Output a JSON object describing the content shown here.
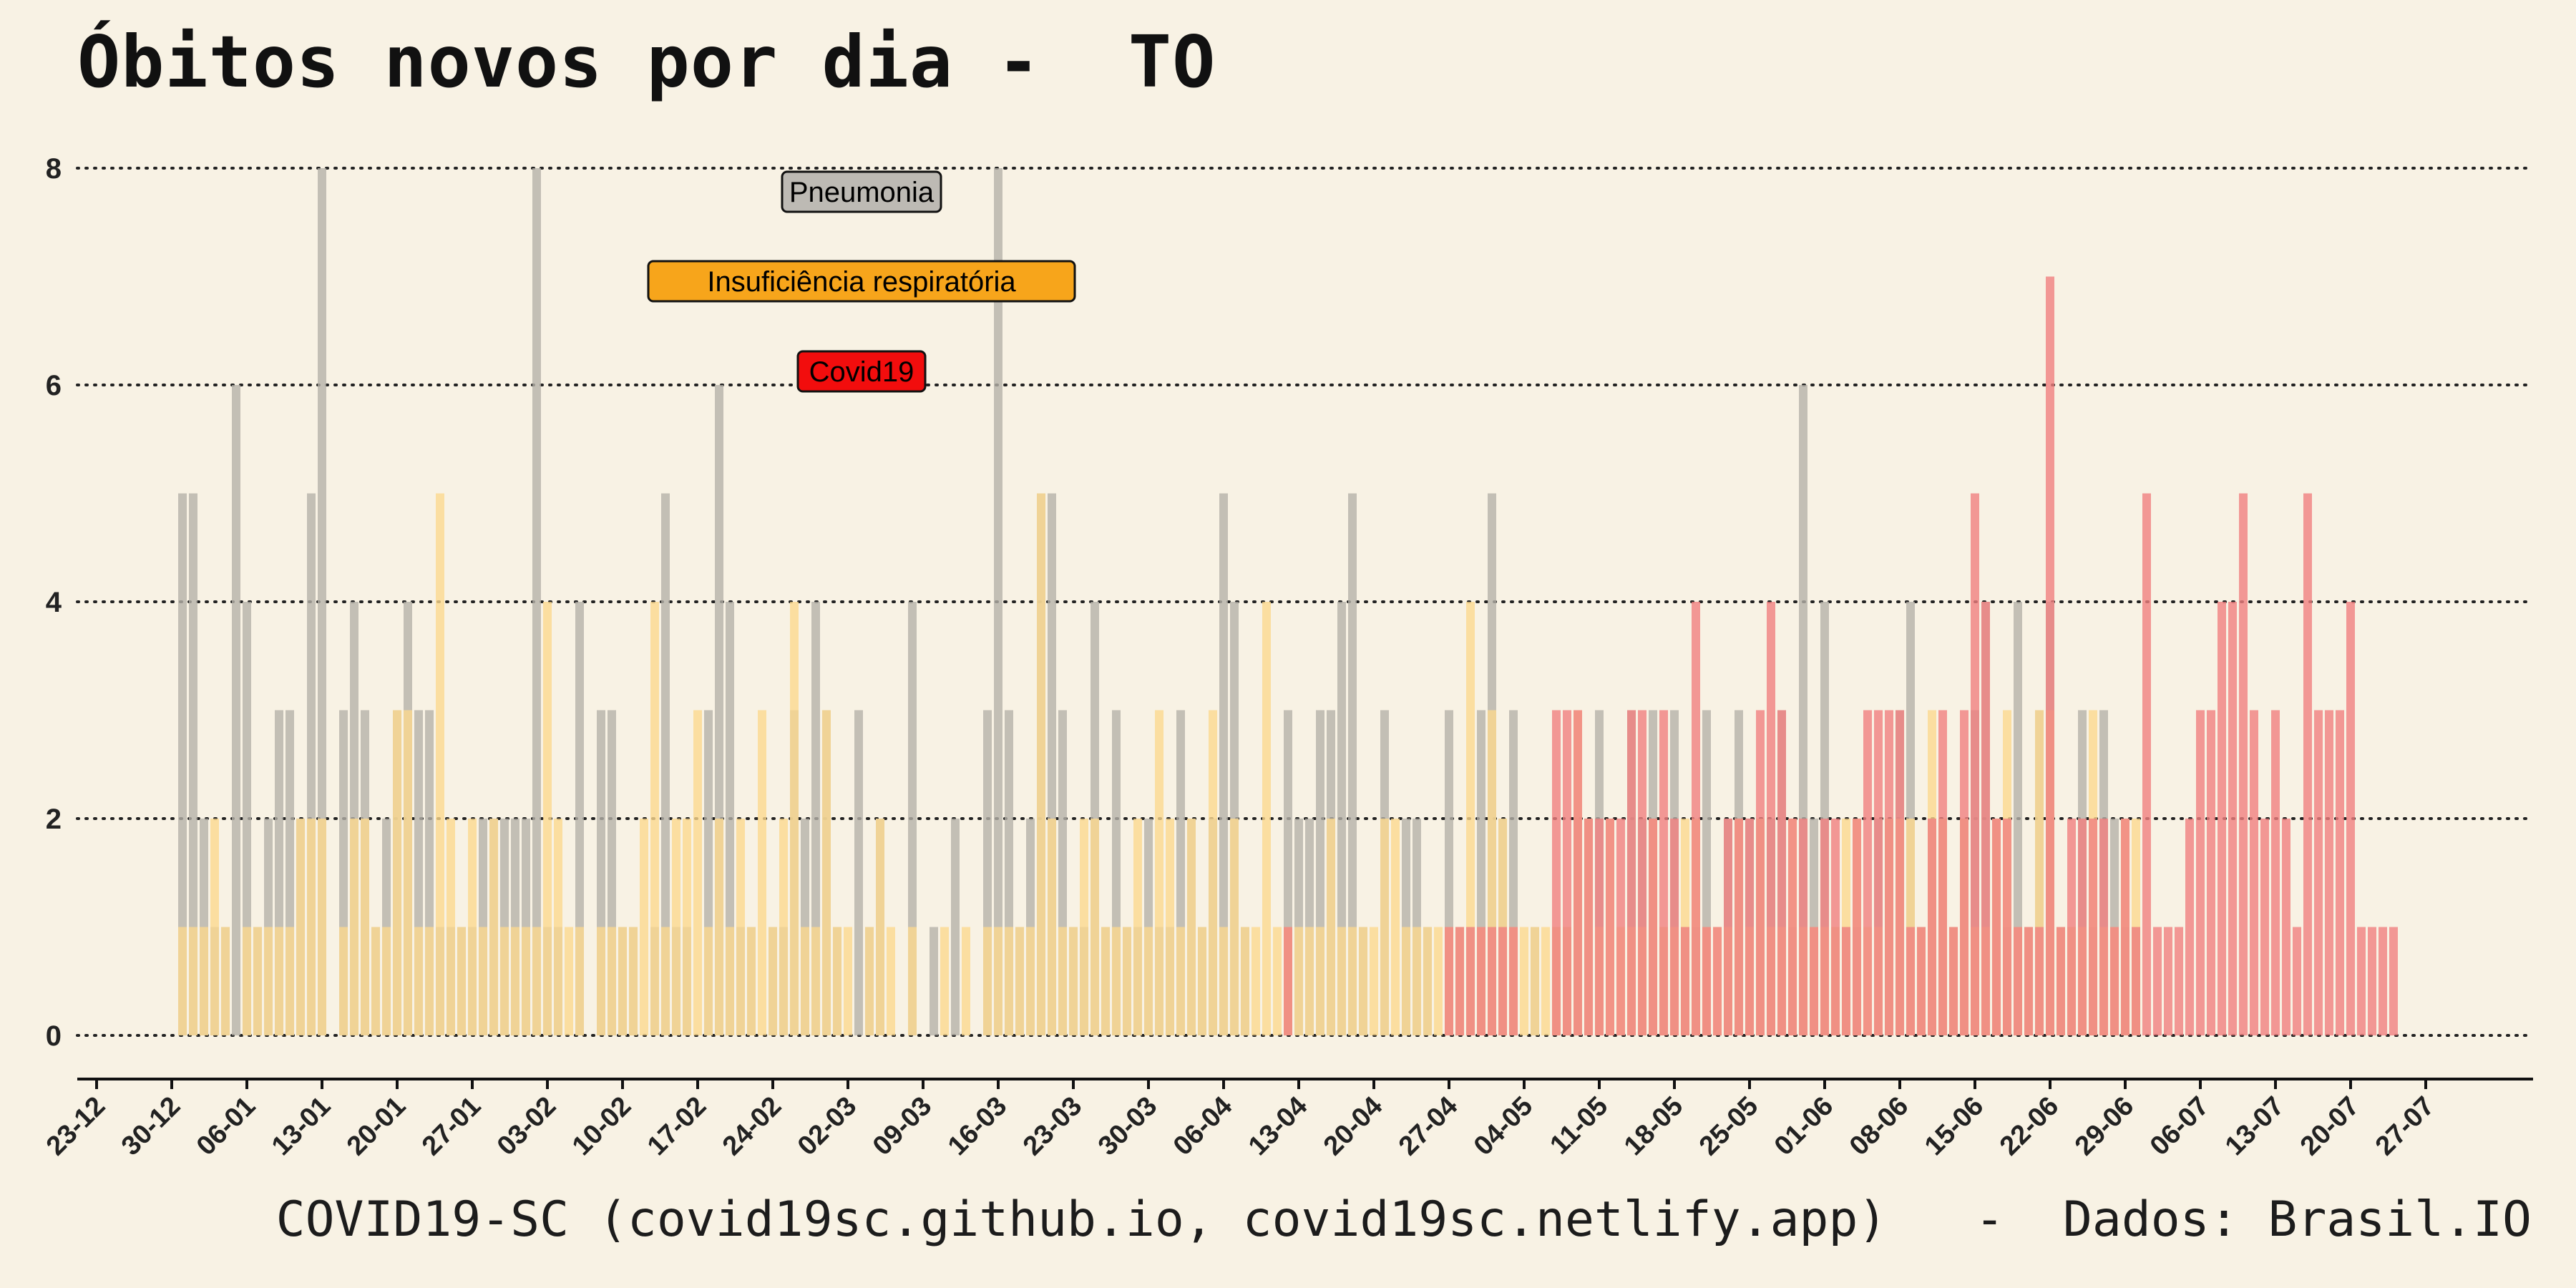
{
  "title": "Óbitos novos por dia -  TO",
  "caption": "COVID19-SC (covid19sc.github.io, covid19sc.netlify.app)   -  Dados: Brasil.IO",
  "chart_data": {
    "type": "bar",
    "title": "Óbitos novos por dia -  TO",
    "xlabel": "",
    "ylabel": "",
    "ylim": [
      0,
      8
    ],
    "yticks": [
      0,
      2,
      4,
      6,
      8
    ],
    "grid": "horizontal dotted",
    "x_axis": {
      "start_date": "2020-12-23",
      "end_date": "2021-07-27",
      "tick_labels": [
        "23-12",
        "30-12",
        "06-01",
        "13-01",
        "20-01",
        "27-01",
        "03-02",
        "10-02",
        "17-02",
        "24-02",
        "02-03",
        "09-03",
        "16-03",
        "23-03",
        "30-03",
        "06-04",
        "13-04",
        "20-04",
        "27-04",
        "04-05",
        "11-05",
        "18-05",
        "25-05",
        "01-06",
        "08-06",
        "15-06",
        "22-06",
        "29-06",
        "06-07",
        "13-07",
        "20-07",
        "27-07"
      ]
    },
    "legend_placement": "top-left inside plot",
    "series": [
      {
        "name": "Pneumonia",
        "color": "#b5b1a9",
        "start_date": "2020-12-31",
        "values": [
          5,
          5,
          2,
          1,
          1,
          6,
          4,
          1,
          2,
          3,
          3,
          2,
          5,
          8,
          0,
          3,
          4,
          3,
          1,
          2,
          3,
          4,
          3,
          3,
          1,
          1,
          1,
          1,
          2,
          2,
          2,
          2,
          2,
          8,
          1,
          1,
          0,
          4,
          0,
          3,
          3,
          1,
          1,
          0,
          1,
          5,
          1,
          1,
          0,
          3,
          6,
          4,
          1,
          1,
          0,
          1,
          1,
          3,
          2,
          4,
          3,
          1,
          0,
          3,
          1,
          2,
          0,
          0,
          4,
          0,
          1,
          0,
          2,
          0,
          0,
          3,
          8,
          3,
          1,
          2,
          5,
          5,
          3,
          1,
          1,
          4,
          1,
          3,
          1,
          1,
          2,
          1,
          1,
          3,
          2,
          1,
          2,
          5,
          4,
          1,
          0,
          0,
          0,
          3,
          2,
          2,
          3,
          3,
          4,
          5,
          1,
          0,
          3,
          0,
          2,
          2,
          1,
          0,
          3,
          1,
          1,
          3,
          5,
          2,
          3,
          0,
          1,
          0,
          1,
          1,
          2,
          2,
          3,
          0,
          0,
          3,
          2,
          3,
          1,
          3,
          1,
          1,
          3,
          0,
          2,
          3,
          2,
          2,
          2,
          3,
          1,
          6,
          2,
          4,
          1,
          1,
          1,
          0,
          2,
          2,
          3,
          4,
          1,
          2,
          2,
          1,
          2,
          3,
          4,
          2,
          1,
          4,
          1,
          3,
          4,
          1,
          1,
          3,
          1,
          3,
          2,
          1,
          1,
          0,
          0
        ],
        "mode": "overlapping"
      },
      {
        "name": "Insuficiência respiratória",
        "color": "#fbd88f",
        "start_date": "2020-12-31",
        "values": [
          1,
          1,
          1,
          2,
          1,
          0,
          1,
          1,
          1,
          1,
          1,
          2,
          2,
          2,
          0,
          1,
          2,
          2,
          1,
          1,
          3,
          3,
          1,
          1,
          5,
          2,
          1,
          2,
          1,
          2,
          1,
          1,
          1,
          1,
          4,
          2,
          1,
          1,
          0,
          1,
          1,
          1,
          1,
          2,
          4,
          1,
          2,
          2,
          3,
          1,
          2,
          1,
          2,
          1,
          3,
          1,
          2,
          4,
          1,
          1,
          3,
          1,
          1,
          0,
          1,
          2,
          1,
          0,
          1,
          0,
          0,
          1,
          0,
          1,
          0,
          1,
          1,
          1,
          1,
          1,
          5,
          2,
          1,
          1,
          2,
          2,
          1,
          1,
          1,
          2,
          1,
          3,
          2,
          1,
          2,
          1,
          3,
          1,
          2,
          1,
          1,
          4,
          1,
          1,
          1,
          1,
          1,
          2,
          1,
          1,
          1,
          1,
          2,
          2,
          1,
          1,
          1,
          1,
          1,
          1,
          4,
          1,
          3,
          2,
          1,
          1,
          1,
          1,
          1,
          1,
          3,
          2,
          1,
          2,
          1,
          1,
          1,
          2,
          1,
          1,
          2,
          2,
          1,
          1,
          1,
          2,
          1,
          2,
          1,
          1,
          2,
          1,
          1,
          1,
          1,
          2,
          2,
          1,
          1,
          2,
          2,
          2,
          1,
          3,
          2,
          1,
          2,
          1,
          1,
          2,
          3,
          1,
          1,
          3,
          3,
          1,
          1,
          1,
          3,
          1,
          1,
          2,
          2,
          0,
          0,
          0
        ],
        "mode": "overlapping"
      },
      {
        "name": "Covid19",
        "color": "#f08080",
        "start_date": "2021-04-13",
        "values": [
          1,
          0,
          0,
          0,
          0,
          0,
          0,
          0,
          0,
          0,
          0,
          0,
          0,
          0,
          0,
          1,
          1,
          1,
          1,
          1,
          1,
          1,
          0,
          0,
          0,
          3,
          3,
          3,
          2,
          2,
          2,
          2,
          3,
          3,
          2,
          3,
          2,
          1,
          4,
          1,
          1,
          2,
          2,
          2,
          3,
          4,
          3,
          2,
          2,
          1,
          2,
          2,
          1,
          2,
          3,
          3,
          3,
          3,
          1,
          1,
          2,
          3,
          1,
          3,
          5,
          4,
          2,
          2,
          1,
          1,
          1,
          7,
          1,
          2,
          2,
          2,
          2,
          1,
          2,
          1,
          5,
          1,
          1,
          1,
          2,
          3,
          3,
          4,
          4,
          5,
          3,
          2,
          3,
          2,
          1,
          5,
          3,
          3,
          3,
          4,
          1,
          1,
          1,
          1
        ],
        "mode": "overlapping"
      }
    ]
  }
}
